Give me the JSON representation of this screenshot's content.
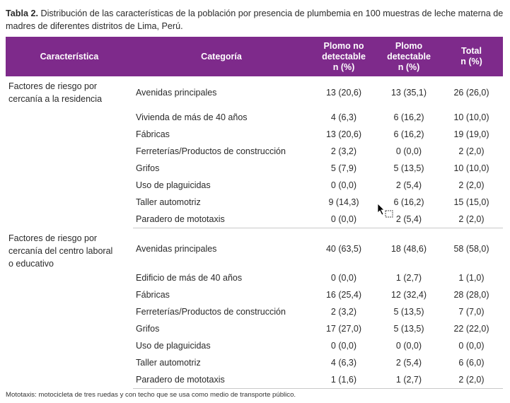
{
  "caption": {
    "label": "Tabla 2.",
    "text": " Distribución de las características de la población por presencia de plumbemia en 100 muestras de leche materna de madres de diferentes distritos de Lima, Perú."
  },
  "table": {
    "headers": {
      "caracteristica": "Característica",
      "categoria": "Categoría",
      "no_detectable": [
        "Plomo no",
        "detectable",
        "n (%)"
      ],
      "detectable": [
        "Plomo",
        "detectable",
        "n (%)"
      ],
      "total": [
        "Total",
        "n (%)"
      ]
    },
    "groups": [
      {
        "label": [
          "Factores de riesgo por",
          "cercanía a la residencia"
        ],
        "rows": [
          {
            "categoria": "Avenidas principales",
            "no_det": "13 (20,6)",
            "det": "13 (35,1)",
            "total": "26 (26,0)"
          },
          {
            "categoria": "Vivienda de más de 40 años",
            "no_det": "4 (6,3)",
            "det": "6 (16,2)",
            "total": "10 (10,0)"
          },
          {
            "categoria": "Fábricas",
            "no_det": "13 (20,6)",
            "det": "6 (16,2)",
            "total": "19 (19,0)"
          },
          {
            "categoria": "Ferreterías/Productos de construcción",
            "no_det": "2 (3,2)",
            "det": "0 (0,0)",
            "total": "2 (2,0)"
          },
          {
            "categoria": "Grifos",
            "no_det": "5 (7,9)",
            "det": "5 (13,5)",
            "total": "10 (10,0)"
          },
          {
            "categoria": "Uso de plaguicidas",
            "no_det": "0 (0,0)",
            "det": "2 (5,4)",
            "total": "2 (2,0)"
          },
          {
            "categoria": "Taller automotriz",
            "no_det": "9 (14,3)",
            "det": "6 (16,2)",
            "total": "15 (15,0)"
          },
          {
            "categoria": "Paradero de mototaxis",
            "no_det": "0 (0,0)",
            "det": "2 (5,4)",
            "total": "2 (2,0)"
          }
        ]
      },
      {
        "label": [
          "Factores de riesgo por",
          "cercanía del centro laboral",
          "o educativo"
        ],
        "rows": [
          {
            "categoria": "Avenidas principales",
            "no_det": "40 (63,5)",
            "det": "18 (48,6)",
            "total": "58 (58,0)"
          },
          {
            "categoria": "Edificio de más de 40 años",
            "no_det": "0 (0,0)",
            "det": "1 (2,7)",
            "total": "1 (1,0)"
          },
          {
            "categoria": "Fábricas",
            "no_det": "16 (25,4)",
            "det": "12 (32,4)",
            "total": "28 (28,0)"
          },
          {
            "categoria": "Ferreterías/Productos de construcción",
            "no_det": "2 (3,2)",
            "det": "5 (13,5)",
            "total": "7 (7,0)"
          },
          {
            "categoria": "Grifos",
            "no_det": "17 (27,0)",
            "det": "5 (13,5)",
            "total": "22 (22,0)"
          },
          {
            "categoria": "Uso de plaguicidas",
            "no_det": "0 (0,0)",
            "det": "0 (0,0)",
            "total": "0 (0,0)"
          },
          {
            "categoria": "Taller automotriz",
            "no_det": "4 (6,3)",
            "det": "2 (5,4)",
            "total": "6 (6,0)"
          },
          {
            "categoria": "Paradero de mototaxis",
            "no_det": "1 (1,6)",
            "det": "1 (2,7)",
            "total": "2 (2,0)"
          }
        ]
      }
    ]
  },
  "footnote": "Mototaxis: motocicleta de tres ruedas y con techo que se usa como medio de transporte público.",
  "colors": {
    "header_bg": "#7e2a8b",
    "header_text": "#ffffff"
  },
  "icons": {
    "cursor": "mouse-pointer-icon"
  }
}
